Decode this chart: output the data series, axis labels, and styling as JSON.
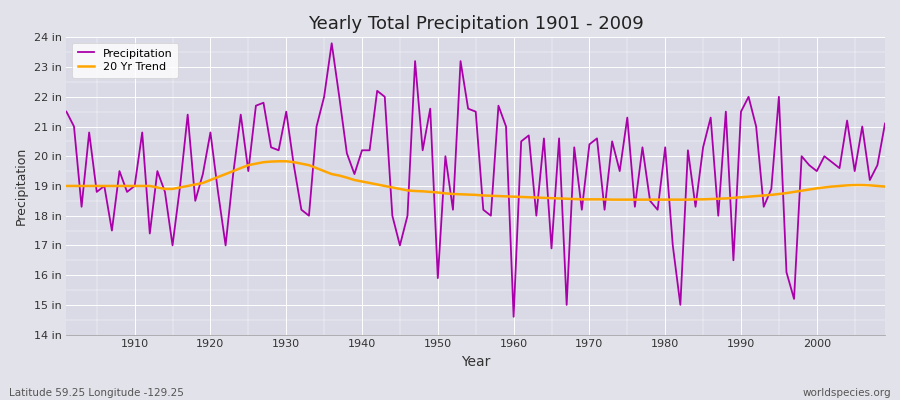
{
  "title": "Yearly Total Precipitation 1901 - 2009",
  "xlabel": "Year",
  "ylabel": "Precipitation",
  "subtitle_left": "Latitude 59.25 Longitude -129.25",
  "subtitle_right": "worldspecies.org",
  "legend_labels": [
    "Precipitation",
    "20 Yr Trend"
  ],
  "precip_color": "#AA00AA",
  "trend_color": "#FFA500",
  "fig_bg_color": "#E0E0E8",
  "plot_bg_color": "#D8D8E4",
  "ylim": [
    14,
    24
  ],
  "ytick_labels": [
    "14 in",
    "15 in",
    "16 in",
    "17 in",
    "18 in",
    "19 in",
    "20 in",
    "21 in",
    "22 in",
    "23 in",
    "24 in"
  ],
  "ytick_values": [
    14,
    15,
    16,
    17,
    18,
    19,
    20,
    21,
    22,
    23,
    24
  ],
  "years": [
    1901,
    1902,
    1903,
    1904,
    1905,
    1906,
    1907,
    1908,
    1909,
    1910,
    1911,
    1912,
    1913,
    1914,
    1915,
    1916,
    1917,
    1918,
    1919,
    1920,
    1921,
    1922,
    1923,
    1924,
    1925,
    1926,
    1927,
    1928,
    1929,
    1930,
    1931,
    1932,
    1933,
    1934,
    1935,
    1936,
    1937,
    1938,
    1939,
    1940,
    1941,
    1942,
    1943,
    1944,
    1945,
    1946,
    1947,
    1948,
    1949,
    1950,
    1951,
    1952,
    1953,
    1954,
    1955,
    1956,
    1957,
    1958,
    1959,
    1960,
    1961,
    1962,
    1963,
    1964,
    1965,
    1966,
    1967,
    1968,
    1969,
    1970,
    1971,
    1972,
    1973,
    1974,
    1975,
    1976,
    1977,
    1978,
    1979,
    1980,
    1981,
    1982,
    1983,
    1984,
    1985,
    1986,
    1987,
    1988,
    1989,
    1990,
    1991,
    1992,
    1993,
    1994,
    1995,
    1996,
    1997,
    1998,
    1999,
    2000,
    2001,
    2002,
    2003,
    2004,
    2005,
    2006,
    2007,
    2008,
    2009
  ],
  "precip": [
    21.5,
    21.0,
    18.3,
    20.8,
    18.8,
    19.0,
    17.5,
    19.5,
    18.8,
    19.0,
    20.8,
    17.4,
    19.5,
    18.8,
    17.0,
    19.0,
    21.4,
    18.5,
    19.4,
    20.8,
    18.8,
    17.0,
    19.4,
    21.4,
    19.5,
    21.7,
    21.8,
    20.3,
    20.2,
    21.5,
    19.7,
    18.2,
    18.0,
    21.0,
    22.0,
    23.8,
    22.0,
    20.1,
    19.4,
    20.2,
    20.2,
    22.2,
    22.0,
    18.0,
    17.0,
    18.0,
    23.2,
    20.2,
    21.6,
    15.9,
    20.0,
    18.2,
    23.2,
    21.6,
    21.5,
    18.2,
    18.0,
    21.7,
    21.0,
    14.6,
    20.5,
    20.7,
    18.0,
    20.6,
    16.9,
    20.6,
    15.0,
    20.3,
    18.2,
    20.4,
    20.6,
    18.2,
    20.5,
    19.5,
    21.3,
    18.3,
    20.3,
    18.5,
    18.2,
    20.3,
    17.0,
    15.0,
    20.2,
    18.3,
    20.3,
    21.3,
    18.0,
    21.5,
    16.5,
    21.5,
    22.0,
    21.0,
    18.3,
    18.9,
    22.0,
    16.1,
    15.2,
    20.0,
    19.7,
    19.5,
    20.0,
    19.8,
    19.6,
    21.2,
    19.5,
    21.0,
    19.2,
    19.7,
    21.1
  ],
  "trend": [
    19.0,
    19.0,
    19.0,
    19.0,
    19.0,
    19.0,
    19.0,
    19.0,
    19.0,
    19.0,
    19.0,
    19.0,
    18.95,
    18.9,
    18.9,
    18.95,
    19.0,
    19.05,
    19.1,
    19.2,
    19.3,
    19.4,
    19.5,
    19.6,
    19.7,
    19.75,
    19.8,
    19.82,
    19.83,
    19.83,
    19.8,
    19.75,
    19.7,
    19.6,
    19.5,
    19.4,
    19.35,
    19.28,
    19.2,
    19.15,
    19.1,
    19.05,
    19.0,
    18.95,
    18.9,
    18.85,
    18.83,
    18.82,
    18.8,
    18.78,
    18.75,
    18.73,
    18.72,
    18.71,
    18.7,
    18.68,
    18.67,
    18.66,
    18.65,
    18.64,
    18.63,
    18.62,
    18.61,
    18.6,
    18.59,
    18.58,
    18.57,
    18.56,
    18.55,
    18.55,
    18.55,
    18.55,
    18.54,
    18.54,
    18.54,
    18.54,
    18.54,
    18.54,
    18.54,
    18.54,
    18.54,
    18.54,
    18.54,
    18.55,
    18.55,
    18.56,
    18.57,
    18.58,
    18.6,
    18.62,
    18.64,
    18.66,
    18.68,
    18.7,
    18.73,
    18.76,
    18.8,
    18.84,
    18.88,
    18.92,
    18.95,
    18.98,
    19.0,
    19.02,
    19.03,
    19.03,
    19.02,
    19.0,
    18.98
  ]
}
